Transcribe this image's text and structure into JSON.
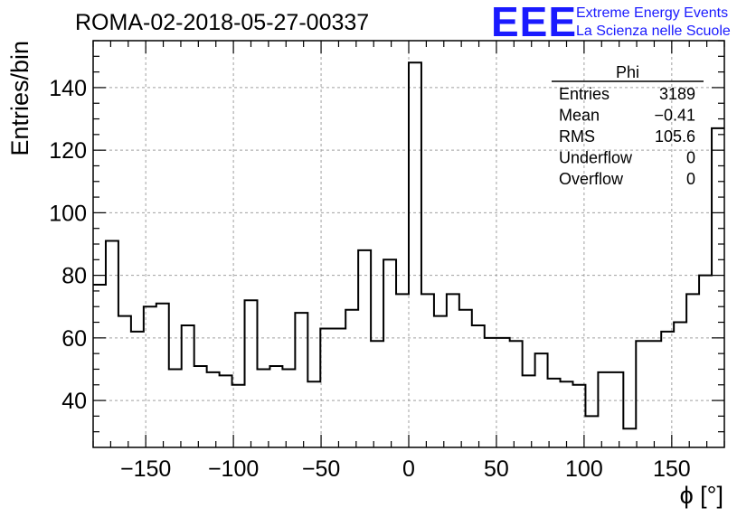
{
  "chart_data": {
    "type": "histogram",
    "title": "ROMA-02-2018-05-27-00337",
    "xlabel": "ϕ [°]",
    "ylabel": "Entries/bin",
    "xlim": [
      -180,
      180
    ],
    "ylim": [
      25,
      155
    ],
    "bin_width": 7.2,
    "bin_start": -180,
    "values": [
      77,
      91,
      67,
      62,
      70,
      71,
      50,
      64,
      51,
      49,
      48,
      45,
      72,
      50,
      51,
      50,
      68,
      46,
      63,
      63,
      69,
      88,
      59,
      85,
      74,
      148,
      74,
      67,
      74,
      69,
      64,
      60,
      60,
      59,
      48,
      55,
      47,
      46,
      45,
      35,
      49,
      49,
      31,
      59,
      59,
      62,
      65,
      74,
      80,
      127
    ],
    "x_ticks": [
      "−150",
      "−100",
      "−50",
      "0",
      "50",
      "100",
      "150"
    ],
    "x_tick_values": [
      -150,
      -100,
      -50,
      0,
      50,
      100,
      150
    ],
    "y_ticks": [
      "40",
      "60",
      "80",
      "100",
      "120",
      "140"
    ],
    "y_tick_values": [
      40,
      60,
      80,
      100,
      120,
      140
    ],
    "grid": true,
    "stats_box": {
      "name": "Phi",
      "rows": [
        {
          "label": "Entries",
          "value": "3189"
        },
        {
          "label": "Mean",
          "value": "−0.41"
        },
        {
          "label": "RMS",
          "value": "105.6"
        },
        {
          "label": "Underflow",
          "value": "0"
        },
        {
          "label": "Overflow",
          "value": "0"
        }
      ]
    }
  },
  "logo": {
    "acronym": "EEE",
    "line1": "Extreme Energy Events",
    "line2": "La Scienza nelle Scuole",
    "color": "#1a1aff"
  }
}
